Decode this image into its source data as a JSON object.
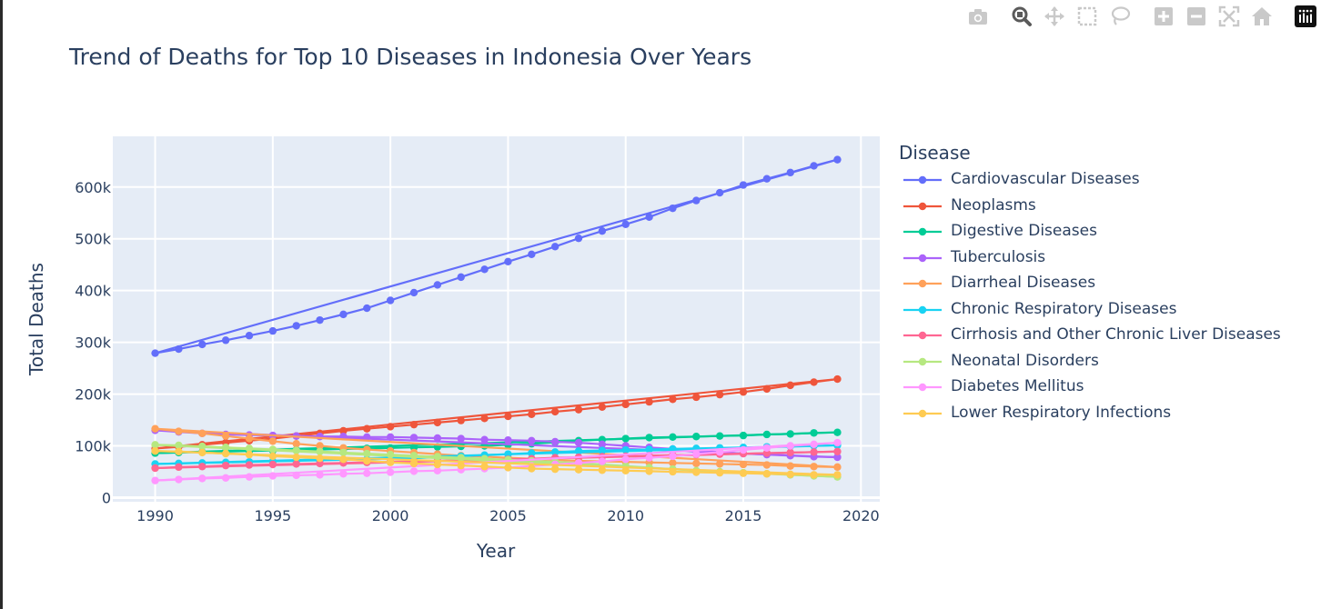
{
  "toolbar": {
    "buttons": [
      {
        "name": "camera-icon",
        "label": "Download plot as a png"
      },
      {
        "name": "zoom-icon",
        "label": "Zoom"
      },
      {
        "name": "pan-icon",
        "label": "Pan"
      },
      {
        "name": "box-select-icon",
        "label": "Box Select"
      },
      {
        "name": "lasso-select-icon",
        "label": "Lasso Select"
      },
      {
        "name": "zoom-in-icon",
        "label": "Zoom in"
      },
      {
        "name": "zoom-out-icon",
        "label": "Zoom out"
      },
      {
        "name": "autoscale-icon",
        "label": "Autoscale"
      },
      {
        "name": "reset-axes-icon",
        "label": "Reset axes"
      },
      {
        "name": "plotly-logo-icon",
        "label": "Produced with Plotly"
      }
    ]
  },
  "chart_data": {
    "type": "line",
    "title": "Trend of Deaths for Top 10 Diseases in Indonesia Over Years",
    "xlabel": "Year",
    "ylabel": "Total Deaths",
    "xlim": [
      1988.2,
      2020.8
    ],
    "ylim": [
      -8000,
      698000
    ],
    "x_ticks": [
      1990,
      1995,
      2000,
      2005,
      2010,
      2015,
      2020
    ],
    "y_ticks": [
      0,
      100000,
      200000,
      300000,
      400000,
      500000,
      600000
    ],
    "y_tick_labels": [
      "0",
      "100k",
      "200k",
      "300k",
      "400k",
      "500k",
      "600k"
    ],
    "grid": true,
    "plot_background": "#e5ecf6",
    "legend_title": "Disease",
    "legend_position": "right",
    "x": [
      1990,
      1991,
      1992,
      1993,
      1994,
      1995,
      1996,
      1997,
      1998,
      1999,
      2000,
      2001,
      2002,
      2003,
      2004,
      2005,
      2006,
      2007,
      2008,
      2009,
      2010,
      2011,
      2012,
      2013,
      2014,
      2015,
      2016,
      2017,
      2018,
      2019
    ],
    "series": [
      {
        "name": "Cardiovascular Diseases",
        "color": "#636efa",
        "values": [
          279000,
          287000,
          296000,
          304000,
          313000,
          322000,
          332000,
          343000,
          354000,
          366000,
          381000,
          396000,
          411000,
          426000,
          441000,
          456000,
          470000,
          485000,
          501000,
          515000,
          528000,
          542000,
          559000,
          574000,
          589000,
          604000,
          616000,
          628000,
          641000,
          653000
        ]
      },
      {
        "name": "Neoplasms",
        "color": "#ef553b",
        "values": [
          95000,
          98000,
          102000,
          106000,
          110000,
          114000,
          119000,
          124000,
          129000,
          133000,
          137000,
          141000,
          145000,
          149000,
          153000,
          157000,
          161000,
          166000,
          170000,
          175000,
          180000,
          185000,
          190000,
          194000,
          199000,
          204000,
          210000,
          217000,
          223000,
          229000
        ]
      },
      {
        "name": "Digestive Diseases",
        "color": "#00cc96",
        "values": [
          86000,
          87000,
          88000,
          89000,
          90000,
          91000,
          92000,
          93000,
          94000,
          95000,
          96000,
          97000,
          98000,
          99000,
          100000,
          102000,
          104000,
          107000,
          110000,
          112000,
          114000,
          116000,
          117000,
          118000,
          119000,
          120000,
          122000,
          123000,
          125000,
          126000
        ]
      },
      {
        "name": "Tuberculosis",
        "color": "#ab63fa",
        "values": [
          130000,
          127000,
          124000,
          122000,
          121000,
          120000,
          119000,
          118000,
          118000,
          117000,
          117000,
          116000,
          115000,
          114000,
          112000,
          111000,
          110000,
          108000,
          106000,
          103000,
          100000,
          97000,
          94000,
          91000,
          88000,
          85000,
          83000,
          81000,
          79000,
          78000
        ]
      },
      {
        "name": "Diarrheal Diseases",
        "color": "#ffa15a",
        "values": [
          133000,
          128000,
          124000,
          119000,
          114000,
          109000,
          104000,
          100000,
          96000,
          93000,
          90000,
          87000,
          84000,
          81000,
          79000,
          77000,
          75000,
          73000,
          71000,
          70000,
          69000,
          68000,
          67000,
          66000,
          65000,
          64000,
          63000,
          61000,
          60000,
          59000
        ]
      },
      {
        "name": "Chronic Respiratory Diseases",
        "color": "#19d3f3",
        "values": [
          65000,
          66000,
          67000,
          68000,
          69000,
          70000,
          71000,
          72000,
          73000,
          74000,
          75000,
          76000,
          78000,
          80000,
          82000,
          84000,
          86000,
          88000,
          90000,
          91000,
          92000,
          93000,
          94000,
          95000,
          96000,
          97000,
          98000,
          99000,
          100000,
          101000
        ]
      },
      {
        "name": "Cirrhosis and Other Chronic Liver Diseases",
        "color": "#ff6692",
        "values": [
          57000,
          59000,
          60000,
          62000,
          63000,
          64000,
          65000,
          66000,
          67000,
          68000,
          69000,
          70000,
          71000,
          72000,
          73000,
          74000,
          75000,
          77000,
          78000,
          79000,
          80000,
          81000,
          82000,
          83000,
          84000,
          85000,
          86000,
          87000,
          88000,
          89000
        ]
      },
      {
        "name": "Neonatal Disorders",
        "color": "#b6e880",
        "values": [
          102000,
          101000,
          99000,
          97000,
          95000,
          93000,
          91000,
          89000,
          87000,
          85000,
          83000,
          81000,
          79000,
          77000,
          75000,
          73000,
          71000,
          69000,
          67000,
          64000,
          61000,
          58000,
          55000,
          52000,
          50000,
          48000,
          46000,
          44000,
          42000,
          40000
        ]
      },
      {
        "name": "Diabetes Mellitus",
        "color": "#ff97ff",
        "values": [
          33000,
          35000,
          37000,
          38000,
          40000,
          42000,
          43000,
          44000,
          46000,
          47000,
          49000,
          51000,
          52000,
          54000,
          56000,
          58000,
          61000,
          64000,
          67000,
          70000,
          74000,
          77000,
          80000,
          84000,
          88000,
          92000,
          96000,
          100000,
          103000,
          106000
        ]
      },
      {
        "name": "Lower Respiratory Infections",
        "color": "#fecb52",
        "values": [
          90000,
          89000,
          87000,
          85000,
          83000,
          80000,
          78000,
          76000,
          74000,
          71000,
          68000,
          66000,
          64000,
          62000,
          60000,
          58000,
          56000,
          55000,
          54000,
          53000,
          52000,
          51000,
          50000,
          49000,
          48000,
          47000,
          46000,
          45000,
          44000,
          44000
        ]
      }
    ]
  }
}
